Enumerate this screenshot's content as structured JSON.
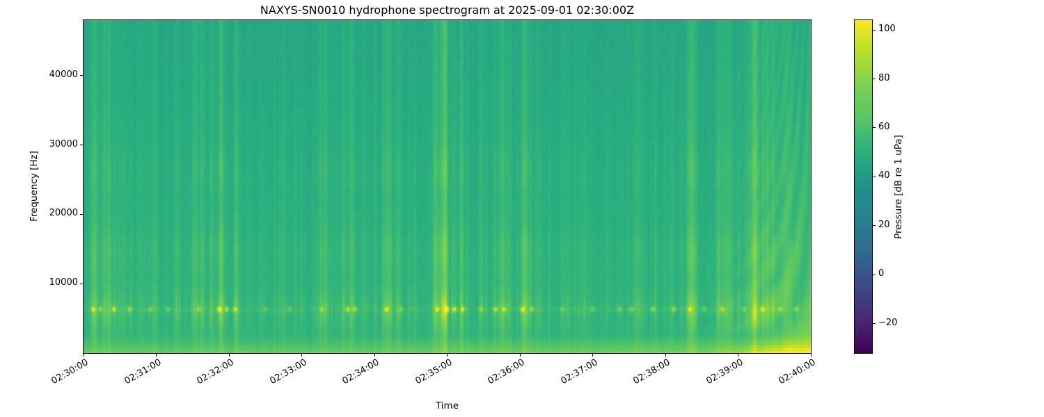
{
  "figure": {
    "background_color": "#ffffff"
  },
  "chart_data": {
    "type": "heatmap",
    "subtype": "spectrogram",
    "title": "NAXYS-SN0010 hydrophone spectrogram at 2025-09-01 02:30:00Z",
    "xlabel": "Time",
    "ylabel": "Frequency [Hz]",
    "colorbar_label": "Pressure [dB re 1 uPa]",
    "x_range_seconds": [
      0,
      600
    ],
    "x_ticks": [
      {
        "label": "02:30:00",
        "s": 0
      },
      {
        "label": "02:31:00",
        "s": 60
      },
      {
        "label": "02:32:00",
        "s": 120
      },
      {
        "label": "02:33:00",
        "s": 180
      },
      {
        "label": "02:34:00",
        "s": 240
      },
      {
        "label": "02:35:00",
        "s": 300
      },
      {
        "label": "02:36:00",
        "s": 360
      },
      {
        "label": "02:37:00",
        "s": 420
      },
      {
        "label": "02:38:00",
        "s": 480
      },
      {
        "label": "02:39:00",
        "s": 540
      },
      {
        "label": "02:40:00",
        "s": 600
      }
    ],
    "y_range_hz": [
      0,
      48000
    ],
    "y_ticks": [
      {
        "label": "10000",
        "hz": 10000
      },
      {
        "label": "20000",
        "hz": 20000
      },
      {
        "label": "30000",
        "hz": 30000
      },
      {
        "label": "40000",
        "hz": 40000
      }
    ],
    "colorbar_ticks": [
      {
        "label": "100",
        "value": 100
      },
      {
        "label": "80",
        "value": 80
      },
      {
        "label": "60",
        "value": 60
      },
      {
        "label": "40",
        "value": 40
      },
      {
        "label": "20",
        "value": 20
      },
      {
        "label": "0",
        "value": 0
      },
      {
        "label": "−20",
        "value": -20
      }
    ],
    "color_scale": {
      "colormap": "viridis",
      "vmin": -32,
      "vmax": 104,
      "stops": [
        "#440154",
        "#482878",
        "#3e4a89",
        "#31688e",
        "#26828e",
        "#21918c",
        "#2ab07f",
        "#54c568",
        "#7ad151",
        "#b5de2b",
        "#fde725"
      ]
    },
    "content": {
      "background_level_db": 52,
      "hf_rolloff_db": 7,
      "tonal_band_hz": 6300,
      "low_band_hz": 2600,
      "click_profile_peaks_hz": [
        6300,
        14500,
        26500
      ],
      "click_clusters": [
        [
          20,
          40,
          10,
          7
        ],
        [
          60,
          30,
          5,
          4
        ],
        [
          112,
          40,
          10,
          8
        ],
        [
          150,
          30,
          4,
          4
        ],
        [
          200,
          25,
          6,
          6
        ],
        [
          220,
          14,
          5,
          7
        ],
        [
          250,
          10,
          4,
          7
        ],
        [
          302,
          30,
          12,
          9
        ],
        [
          342,
          20,
          7,
          7
        ],
        [
          366,
          16,
          6,
          7
        ],
        [
          400,
          30,
          4,
          3
        ],
        [
          445,
          30,
          6,
          4
        ],
        [
          485,
          40,
          8,
          6
        ],
        [
          530,
          30,
          8,
          6
        ],
        [
          565,
          40,
          10,
          6
        ]
      ],
      "background_clicks": 110,
      "tonal_blips": [
        [
          8,
          30
        ],
        [
          14,
          24
        ],
        [
          25,
          38
        ],
        [
          38,
          30
        ],
        [
          55,
          20
        ],
        [
          70,
          18
        ],
        [
          95,
          22
        ],
        [
          112,
          40
        ],
        [
          118,
          34
        ],
        [
          125,
          30
        ],
        [
          150,
          16
        ],
        [
          170,
          18
        ],
        [
          197,
          22
        ],
        [
          218,
          36
        ],
        [
          224,
          32
        ],
        [
          250,
          34
        ],
        [
          262,
          20
        ],
        [
          292,
          30
        ],
        [
          300,
          42
        ],
        [
          306,
          40
        ],
        [
          313,
          34
        ],
        [
          328,
          22
        ],
        [
          340,
          34
        ],
        [
          347,
          30
        ],
        [
          362,
          34
        ],
        [
          370,
          26
        ],
        [
          395,
          18
        ],
        [
          420,
          16
        ],
        [
          442,
          20
        ],
        [
          452,
          24
        ],
        [
          470,
          26
        ],
        [
          487,
          30
        ],
        [
          500,
          26
        ],
        [
          512,
          20
        ],
        [
          527,
          28
        ],
        [
          545,
          22
        ],
        [
          560,
          26
        ],
        [
          575,
          22
        ],
        [
          588,
          24
        ]
      ],
      "closing_event": {
        "start_s": 505,
        "end_s": 600,
        "low_freq_gain_db": 25,
        "striation": true
      }
    }
  },
  "render": {
    "seed": 1337
  }
}
